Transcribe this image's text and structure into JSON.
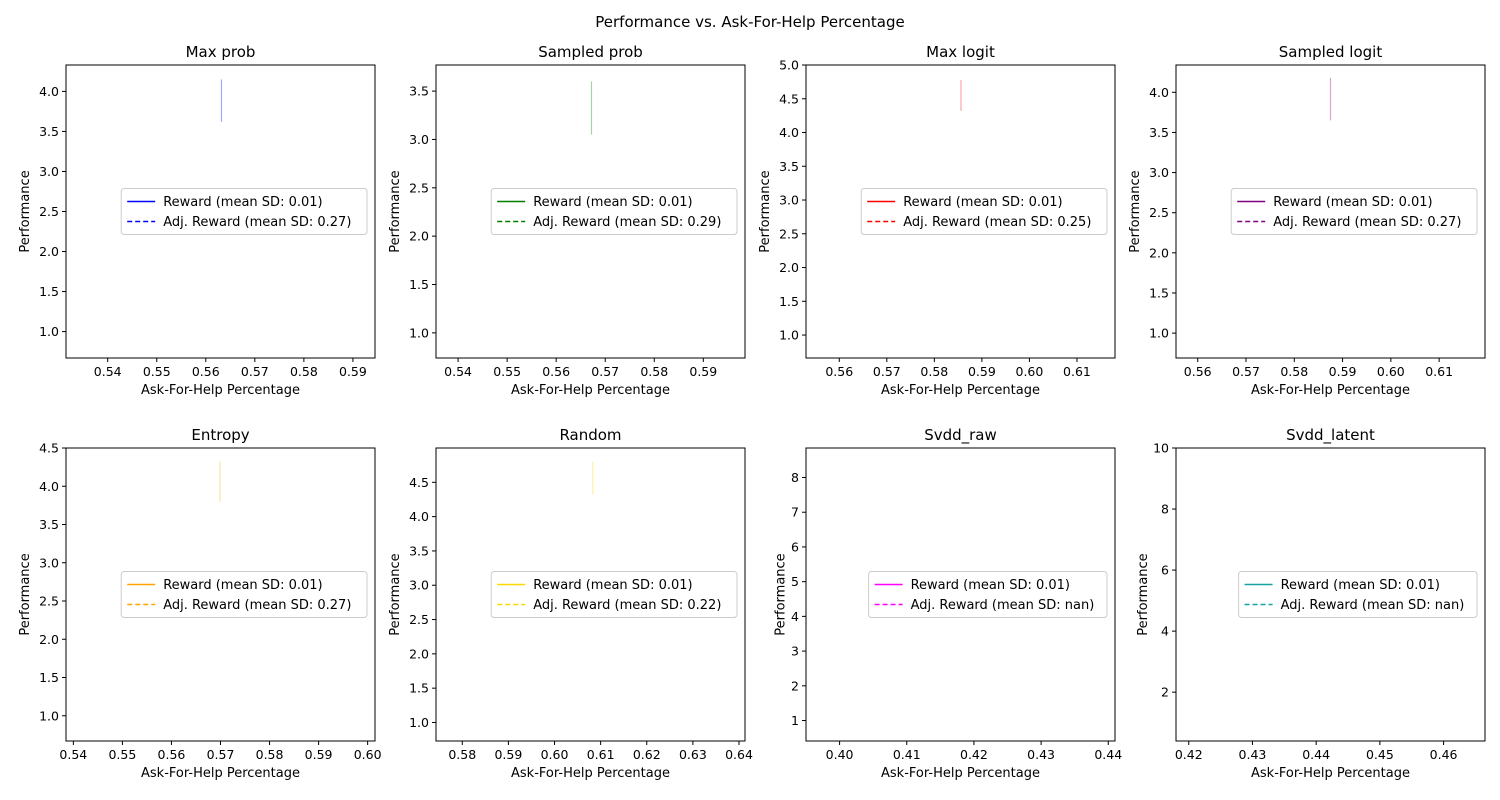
{
  "figure": {
    "suptitle": "Performance vs. Ask-For-Help Percentage"
  },
  "chart_data": [
    {
      "type": "line",
      "title": "Max prob",
      "xlabel": "Ask-For-Help Percentage",
      "ylabel": "Performance",
      "color": "#0000ff",
      "xlim": [
        0.5315,
        0.5945
      ],
      "ylim": [
        0.67,
        4.33
      ],
      "xticks": [
        0.54,
        0.55,
        0.56,
        0.57,
        0.58,
        0.59
      ],
      "xtick_labels": [
        "0.54",
        "0.55",
        "0.56",
        "0.57",
        "0.58",
        "0.59"
      ],
      "yticks": [
        1.0,
        1.5,
        2.0,
        2.5,
        3.0,
        3.5,
        4.0
      ],
      "ytick_labels": [
        "1.0",
        "1.5",
        "2.0",
        "2.5",
        "3.0",
        "3.5",
        "4.0"
      ],
      "points": [
        {
          "x": 0.5632,
          "y_low": 3.62,
          "y_high": 4.15
        }
      ],
      "legend_loc": "center right",
      "series": [
        {
          "name": "Reward (mean SD: 0.01)",
          "style": "solid"
        },
        {
          "name": "Adj. Reward (mean SD: 0.27)",
          "style": "dashed"
        }
      ]
    },
    {
      "type": "line",
      "title": "Sampled prob",
      "xlabel": "Ask-For-Help Percentage",
      "ylabel": "Performance",
      "color": "#008000",
      "xlim": [
        0.5355,
        0.5985
      ],
      "ylim": [
        0.74,
        3.77
      ],
      "xticks": [
        0.54,
        0.55,
        0.56,
        0.57,
        0.58,
        0.59
      ],
      "xtick_labels": [
        "0.54",
        "0.55",
        "0.56",
        "0.57",
        "0.58",
        "0.59"
      ],
      "yticks": [
        1.0,
        1.5,
        2.0,
        2.5,
        3.0,
        3.5
      ],
      "ytick_labels": [
        "1.0",
        "1.5",
        "2.0",
        "2.5",
        "3.0",
        "3.5"
      ],
      "points": [
        {
          "x": 0.5672,
          "y_low": 3.05,
          "y_high": 3.6
        }
      ],
      "legend_loc": "center right",
      "series": [
        {
          "name": "Reward (mean SD: 0.01)",
          "style": "solid"
        },
        {
          "name": "Adj. Reward (mean SD: 0.29)",
          "style": "dashed"
        }
      ]
    },
    {
      "type": "line",
      "title": "Max logit",
      "xlabel": "Ask-For-Help Percentage",
      "ylabel": "Performance",
      "color": "#ff0000",
      "xlim": [
        0.553,
        0.618
      ],
      "ylim": [
        0.66,
        5.0
      ],
      "xticks": [
        0.56,
        0.57,
        0.58,
        0.59,
        0.6,
        0.61
      ],
      "xtick_labels": [
        "0.56",
        "0.57",
        "0.58",
        "0.59",
        "0.60",
        "0.61"
      ],
      "yticks": [
        1.0,
        1.5,
        2.0,
        2.5,
        3.0,
        3.5,
        4.0,
        4.5,
        5.0
      ],
      "ytick_labels": [
        "1.0",
        "1.5",
        "2.0",
        "2.5",
        "3.0",
        "3.5",
        "4.0",
        "4.5",
        "5.0"
      ],
      "points": [
        {
          "x": 0.5856,
          "y_low": 4.32,
          "y_high": 4.78
        }
      ],
      "legend_loc": "center right",
      "series": [
        {
          "name": "Reward (mean SD: 0.01)",
          "style": "solid"
        },
        {
          "name": "Adj. Reward (mean SD: 0.25)",
          "style": "dashed"
        }
      ]
    },
    {
      "type": "line",
      "title": "Sampled logit",
      "xlabel": "Ask-For-Help Percentage",
      "ylabel": "Performance",
      "color": "#800080",
      "xlim": [
        0.5555,
        0.6195
      ],
      "ylim": [
        0.69,
        4.34
      ],
      "xticks": [
        0.56,
        0.57,
        0.58,
        0.59,
        0.6,
        0.61
      ],
      "xtick_labels": [
        "0.56",
        "0.57",
        "0.58",
        "0.59",
        "0.60",
        "0.61"
      ],
      "yticks": [
        1.0,
        1.5,
        2.0,
        2.5,
        3.0,
        3.5,
        4.0
      ],
      "ytick_labels": [
        "1.0",
        "1.5",
        "2.0",
        "2.5",
        "3.0",
        "3.5",
        "4.0"
      ],
      "points": [
        {
          "x": 0.5875,
          "y_low": 3.65,
          "y_high": 4.18
        }
      ],
      "legend_loc": "center right",
      "series": [
        {
          "name": "Reward (mean SD: 0.01)",
          "style": "solid"
        },
        {
          "name": "Adj. Reward (mean SD: 0.27)",
          "style": "dashed"
        }
      ]
    },
    {
      "type": "line",
      "title": "Entropy",
      "xlabel": "Ask-For-Help Percentage",
      "ylabel": "Performance",
      "color": "#ffa500",
      "xlim": [
        0.5385,
        0.6015
      ],
      "ylim": [
        0.67,
        4.5
      ],
      "xticks": [
        0.54,
        0.55,
        0.56,
        0.57,
        0.58,
        0.59,
        0.6
      ],
      "xtick_labels": [
        "0.54",
        "0.55",
        "0.56",
        "0.57",
        "0.58",
        "0.59",
        "0.60"
      ],
      "yticks": [
        1.0,
        1.5,
        2.0,
        2.5,
        3.0,
        3.5,
        4.0,
        4.5
      ],
      "ytick_labels": [
        "1.0",
        "1.5",
        "2.0",
        "2.5",
        "3.0",
        "3.5",
        "4.0",
        "4.5"
      ],
      "points": [
        {
          "x": 0.5699,
          "y_low": 3.8,
          "y_high": 4.32
        }
      ],
      "legend_loc": "center right",
      "series": [
        {
          "name": "Reward (mean SD: 0.01)",
          "style": "solid"
        },
        {
          "name": "Adj. Reward (mean SD: 0.27)",
          "style": "dashed"
        }
      ]
    },
    {
      "type": "line",
      "title": "Random",
      "xlabel": "Ask-For-Help Percentage",
      "ylabel": "Performance",
      "color": "#ffd700",
      "xlim": [
        0.5743,
        0.6413
      ],
      "ylim": [
        0.73,
        5.0
      ],
      "xticks": [
        0.58,
        0.59,
        0.6,
        0.61,
        0.62,
        0.63,
        0.64
      ],
      "xtick_labels": [
        "0.58",
        "0.59",
        "0.60",
        "0.61",
        "0.62",
        "0.63",
        "0.64"
      ],
      "yticks": [
        1.0,
        1.5,
        2.0,
        2.5,
        3.0,
        3.5,
        4.0,
        4.5
      ],
      "ytick_labels": [
        "1.0",
        "1.5",
        "2.0",
        "2.5",
        "3.0",
        "3.5",
        "4.0",
        "4.5"
      ],
      "points": [
        {
          "x": 0.6083,
          "y_low": 4.32,
          "y_high": 4.8
        }
      ],
      "legend_loc": "center right",
      "series": [
        {
          "name": "Reward (mean SD: 0.01)",
          "style": "solid"
        },
        {
          "name": "Adj. Reward (mean SD: 0.22)",
          "style": "dashed"
        }
      ]
    },
    {
      "type": "line",
      "title": "Svdd_raw",
      "xlabel": "Ask-For-Help Percentage",
      "ylabel": "Performance",
      "color": "#ff00ff",
      "xlim": [
        0.395,
        0.441
      ],
      "ylim": [
        0.41,
        8.85
      ],
      "xticks": [
        0.4,
        0.41,
        0.42,
        0.43,
        0.44
      ],
      "xtick_labels": [
        "0.40",
        "0.41",
        "0.42",
        "0.43",
        "0.44"
      ],
      "yticks": [
        1,
        2,
        3,
        4,
        5,
        6,
        7,
        8
      ],
      "ytick_labels": [
        "1",
        "2",
        "3",
        "4",
        "5",
        "6",
        "7",
        "8"
      ],
      "points": [],
      "legend_loc": "center right",
      "series": [
        {
          "name": "Reward (mean SD: 0.01)",
          "style": "solid"
        },
        {
          "name": "Adj. Reward (mean SD: nan)",
          "style": "dashed"
        }
      ]
    },
    {
      "type": "line",
      "title": "Svdd_latent",
      "xlabel": "Ask-For-Help Percentage",
      "ylabel": "Performance",
      "color": "#17a2a2",
      "xlim": [
        0.418,
        0.4665
      ],
      "ylim": [
        0.4,
        10.0
      ],
      "xticks": [
        0.42,
        0.43,
        0.44,
        0.45,
        0.46
      ],
      "xtick_labels": [
        "0.42",
        "0.43",
        "0.44",
        "0.45",
        "0.46"
      ],
      "yticks": [
        2,
        4,
        6,
        8,
        10
      ],
      "ytick_labels": [
        "2",
        "4",
        "6",
        "8",
        "10"
      ],
      "points": [],
      "legend_loc": "center right",
      "series": [
        {
          "name": "Reward (mean SD: 0.01)",
          "style": "solid"
        },
        {
          "name": "Adj. Reward (mean SD: nan)",
          "style": "dashed"
        }
      ]
    }
  ]
}
